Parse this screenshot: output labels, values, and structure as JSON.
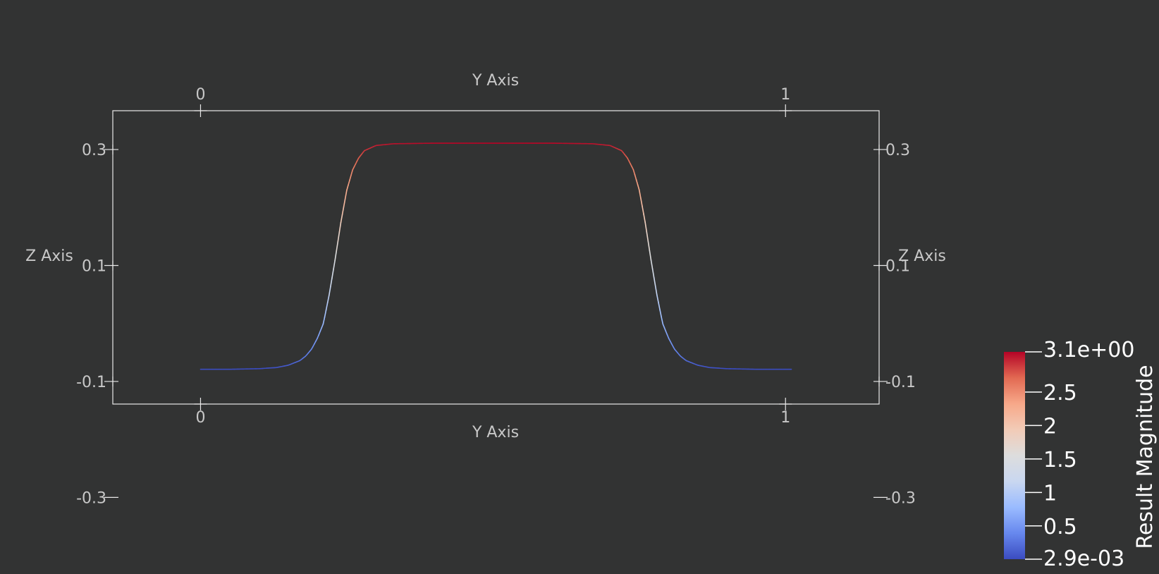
{
  "chart_data": {
    "type": "line",
    "x_label_top": "Y Axis",
    "x_label_bottom": "Y Axis",
    "y_label_left": "Z Axis",
    "y_label_right": "Z Axis",
    "x_ticks": [
      "0",
      "1"
    ],
    "x_tick_values": [
      0,
      1
    ],
    "y_ticks": [
      "0.3",
      "0.1",
      "-0.1",
      "-0.3"
    ],
    "y_tick_values": [
      0.3,
      0.1,
      -0.1,
      -0.3
    ],
    "xlim": [
      -0.15,
      1.16
    ],
    "ylim": [
      -0.139,
      0.367
    ],
    "grid": false,
    "series": [
      {
        "x": [
          0.0,
          0.05,
          0.1,
          0.13,
          0.15,
          0.17,
          0.18,
          0.19,
          0.2,
          0.21,
          0.22,
          0.23,
          0.24,
          0.25,
          0.26,
          0.27,
          0.28,
          0.3,
          0.33,
          0.4,
          0.5,
          0.6,
          0.67,
          0.7,
          0.72,
          0.73,
          0.74,
          0.75,
          0.76,
          0.77,
          0.78,
          0.79,
          0.8,
          0.81,
          0.82,
          0.83,
          0.85,
          0.87,
          0.9,
          0.95,
          1.01
        ],
        "z": [
          -0.079,
          -0.079,
          -0.078,
          -0.076,
          -0.072,
          -0.064,
          -0.056,
          -0.044,
          -0.025,
          0.0,
          0.05,
          0.11,
          0.175,
          0.23,
          0.265,
          0.285,
          0.298,
          0.307,
          0.31,
          0.311,
          0.311,
          0.311,
          0.31,
          0.307,
          0.298,
          0.285,
          0.265,
          0.23,
          0.175,
          0.11,
          0.05,
          0.0,
          -0.025,
          -0.044,
          -0.056,
          -0.064,
          -0.072,
          -0.076,
          -0.078,
          -0.079,
          -0.079
        ],
        "magnitude": [
          0.003,
          0.003,
          0.005,
          0.05,
          0.1,
          0.2,
          0.3,
          0.4,
          0.55,
          0.75,
          1.1,
          1.5,
          1.9,
          2.3,
          2.55,
          2.75,
          2.9,
          3.0,
          3.05,
          3.08,
          3.1,
          3.08,
          3.05,
          3.0,
          2.9,
          2.75,
          2.55,
          2.3,
          1.9,
          1.5,
          1.1,
          0.75,
          0.55,
          0.4,
          0.3,
          0.2,
          0.1,
          0.05,
          0.005,
          0.003,
          0.003
        ]
      }
    ],
    "colorbar": {
      "title": "Result Magnitude",
      "min_label": "2.9e-03",
      "max_label": "3.1e+00",
      "min": 0.0029,
      "max": 3.1,
      "tick_labels": [
        "2.5",
        "2",
        "1.5",
        "1",
        "0.5"
      ],
      "tick_values": [
        2.5,
        2.0,
        1.5,
        1.0,
        0.5
      ],
      "colors": [
        "#3b4cc0",
        "#6788ee",
        "#9abbff",
        "#c9d7f0",
        "#dddddd",
        "#f2cbb7",
        "#f7a889",
        "#e26952",
        "#b40426"
      ]
    }
  }
}
